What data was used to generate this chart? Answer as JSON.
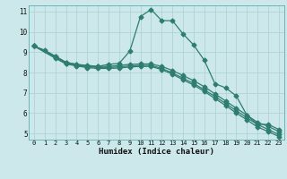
{
  "bg_color": "#cce8ea",
  "grid_color": "#aacfd2",
  "line_color": "#2e7d70",
  "xlabel": "Humidex (Indice chaleur)",
  "xlim": [
    -0.5,
    23.5
  ],
  "ylim": [
    4.7,
    11.3
  ],
  "yticks": [
    5,
    6,
    7,
    8,
    9,
    10,
    11
  ],
  "xticks": [
    0,
    1,
    2,
    3,
    4,
    5,
    6,
    7,
    8,
    9,
    10,
    11,
    12,
    13,
    14,
    15,
    16,
    17,
    18,
    19,
    20,
    21,
    22,
    23
  ],
  "line1_x": [
    0,
    1,
    2,
    3,
    4,
    5,
    6,
    7,
    8,
    9,
    10,
    11,
    12,
    13,
    14,
    15,
    16,
    17,
    18,
    19,
    20,
    21,
    22,
    23
  ],
  "line1_y": [
    9.3,
    9.1,
    8.8,
    8.5,
    8.4,
    8.3,
    8.3,
    8.4,
    8.45,
    9.05,
    10.75,
    11.1,
    10.55,
    10.55,
    9.9,
    9.35,
    8.6,
    7.45,
    7.25,
    6.85,
    5.9,
    5.45,
    5.45,
    5.2
  ],
  "line2_x": [
    0,
    2,
    3,
    4,
    5,
    6,
    7,
    8,
    9,
    10,
    11,
    12,
    13,
    14,
    15,
    16,
    17,
    18,
    19,
    20,
    21,
    22,
    23
  ],
  "line2_y": [
    9.3,
    8.8,
    8.5,
    8.4,
    8.35,
    8.3,
    8.3,
    8.35,
    8.4,
    8.42,
    8.42,
    8.3,
    8.1,
    7.85,
    7.6,
    7.3,
    6.95,
    6.6,
    6.25,
    5.9,
    5.55,
    5.35,
    5.1
  ],
  "line3_x": [
    0,
    2,
    3,
    4,
    5,
    6,
    7,
    8,
    9,
    10,
    11,
    12,
    13,
    14,
    15,
    16,
    17,
    18,
    19,
    20,
    21,
    22,
    23
  ],
  "line3_y": [
    9.3,
    8.75,
    8.45,
    8.35,
    8.28,
    8.25,
    8.25,
    8.28,
    8.32,
    8.35,
    8.35,
    8.2,
    7.98,
    7.72,
    7.46,
    7.15,
    6.82,
    6.48,
    6.12,
    5.78,
    5.44,
    5.2,
    4.95
  ],
  "line4_x": [
    0,
    2,
    3,
    4,
    5,
    6,
    7,
    8,
    9,
    10,
    11,
    12,
    13,
    14,
    15,
    16,
    17,
    18,
    19,
    20,
    21,
    22,
    23
  ],
  "line4_y": [
    9.3,
    8.7,
    8.42,
    8.32,
    8.24,
    8.2,
    8.2,
    8.22,
    8.27,
    8.3,
    8.3,
    8.14,
    7.92,
    7.64,
    7.38,
    7.07,
    6.72,
    6.38,
    6.01,
    5.67,
    5.32,
    5.1,
    4.85
  ]
}
